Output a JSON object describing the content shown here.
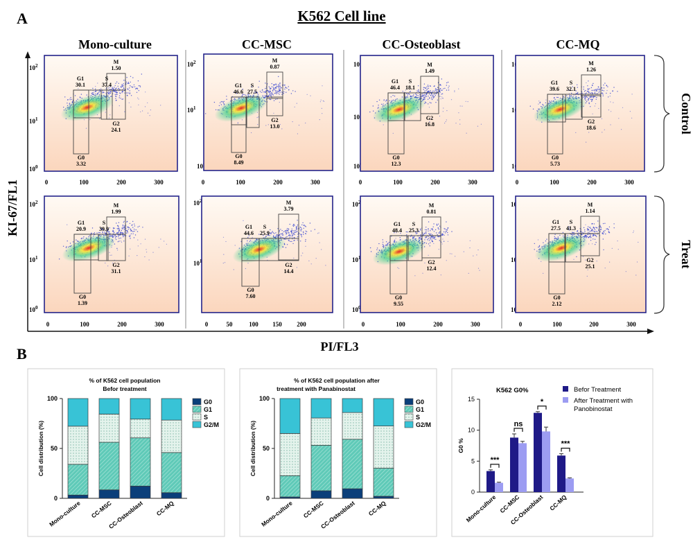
{
  "figure": {
    "panel_a_letter": "A",
    "panel_b_letter": "B",
    "panel_a_title": "K562 Cell line",
    "y_axis_label": "KI-67/FL1",
    "x_axis_label": "PI/FL3",
    "row_labels": [
      "Control",
      "Treat"
    ],
    "column_titles": [
      "Mono-culture",
      "CC-MSC",
      "CC-Osteoblast",
      "CC-MQ"
    ]
  },
  "flow_axes": {
    "y_ticks": [
      {
        "base": "10",
        "exp": "0"
      },
      {
        "base": "10",
        "exp": "1"
      },
      {
        "base": "10",
        "exp": "2"
      }
    ],
    "x_ticks_default": [
      "0",
      "100",
      "200",
      "300"
    ],
    "x_ticks_cc_msc_treat": [
      "0",
      "50",
      "100",
      "150",
      "200"
    ]
  },
  "flow_plots": [
    {
      "column": "Mono-culture",
      "row": "Control",
      "G0": "3.32",
      "G1": "30.1",
      "S": "37.4",
      "M": "1.50",
      "G2": "24.1"
    },
    {
      "column": "CC-MSC",
      "row": "Control",
      "G0": "8.49",
      "G1": "46.6",
      "S": "27.5",
      "M": "0.87",
      "G2": "13.0"
    },
    {
      "column": "CC-Osteoblast",
      "row": "Control",
      "G0": "12.3",
      "G1": "46.4",
      "S": "18.1",
      "M": "1.49",
      "G2": "16.8"
    },
    {
      "column": "CC-MQ",
      "row": "Control",
      "G0": "5.73",
      "G1": "39.6",
      "S": "32.1",
      "M": "1.26",
      "G2": "18.6"
    },
    {
      "column": "Mono-culture",
      "row": "Treat",
      "G0": "1.39",
      "G1": "20.9",
      "S": "39.9",
      "M": "1.99",
      "G2": "31.1"
    },
    {
      "column": "CC-MSC",
      "row": "Treat",
      "G0": "7.60",
      "G1": "44.6",
      "S": "25.9",
      "M": "3.79",
      "G2": "14.4"
    },
    {
      "column": "CC-Osteoblast",
      "row": "Treat",
      "G0": "9.55",
      "G1": "48.4",
      "S": "25.3",
      "M": "0.81",
      "G2": "12.4"
    },
    {
      "column": "CC-MQ",
      "row": "Treat",
      "G0": "2.12",
      "G1": "27.5",
      "S": "41.3",
      "M": "1.14",
      "G2": "25.1"
    }
  ],
  "chart_data": [
    {
      "type": "bar",
      "stacked": true,
      "title_lines": [
        "% of K562 cell population",
        "Befor treatment"
      ],
      "ylabel": "Cell distribution (%)",
      "ylim": [
        0,
        100
      ],
      "yticks": [
        0,
        50,
        100
      ],
      "categories": [
        "Mono-culture",
        "CC-MSC",
        "CC-Osteoblast",
        "CC-MQ"
      ],
      "legend": "right",
      "series": [
        {
          "name": "G0",
          "color": "#0b3f7a",
          "values": [
            3.3,
            8.5,
            12.3,
            5.7
          ]
        },
        {
          "name": "G1",
          "color": "#5fcab8",
          "values": [
            30.8,
            47.7,
            48.3,
            40.2
          ]
        },
        {
          "name": "S",
          "color": "#d8eee6",
          "values": [
            38.2,
            28.2,
            18.8,
            32.5
          ]
        },
        {
          "name": "G2/M",
          "color": "#38c3d6",
          "values": [
            27.7,
            15.6,
            20.6,
            21.6
          ]
        }
      ]
    },
    {
      "type": "bar",
      "stacked": true,
      "title_lines": [
        "% of K562 cell population after",
        "treatment with Panabinostat"
      ],
      "ylabel": "Cell distribution (%)",
      "ylim": [
        0,
        100
      ],
      "yticks": [
        0,
        50,
        100
      ],
      "categories": [
        "Mono-culture",
        "CC-MSC",
        "CC-Osteoblast",
        "CC-MQ"
      ],
      "legend": "right",
      "series": [
        {
          "name": "G0",
          "color": "#0b3f7a",
          "values": [
            1.4,
            7.6,
            9.6,
            2.1
          ]
        },
        {
          "name": "G1",
          "color": "#5fcab8",
          "values": [
            21.3,
            45.6,
            49.6,
            28.1
          ]
        },
        {
          "name": "S",
          "color": "#d8eee6",
          "values": [
            42.3,
            27.3,
            26.8,
            42.3
          ]
        },
        {
          "name": "G2/M",
          "color": "#38c3d6",
          "values": [
            35.0,
            19.5,
            14.0,
            27.5
          ]
        }
      ]
    },
    {
      "type": "bar",
      "grouped": true,
      "title": "K562 G0%",
      "ylabel": "G0 %",
      "ylim": [
        0,
        15
      ],
      "yticks": [
        0,
        5,
        10,
        15
      ],
      "categories": [
        "Mono-culture",
        "CC-MSC",
        "CC-Osteoblast",
        "CC-MQ"
      ],
      "legend": "top-right",
      "series": [
        {
          "name": "Befor Treatment",
          "color": "#1f1a87",
          "values": [
            3.4,
            8.8,
            12.8,
            5.9
          ],
          "errors": [
            0.2,
            0.6,
            0.2,
            0.3
          ]
        },
        {
          "name": "After Treatment with Panobinostat",
          "color": "#9c9cf2",
          "values": [
            1.5,
            7.9,
            9.8,
            2.2
          ],
          "errors": [
            0.1,
            0.3,
            0.7,
            0.1
          ]
        }
      ],
      "significance": [
        "***",
        "ns",
        "*",
        "***"
      ]
    }
  ]
}
